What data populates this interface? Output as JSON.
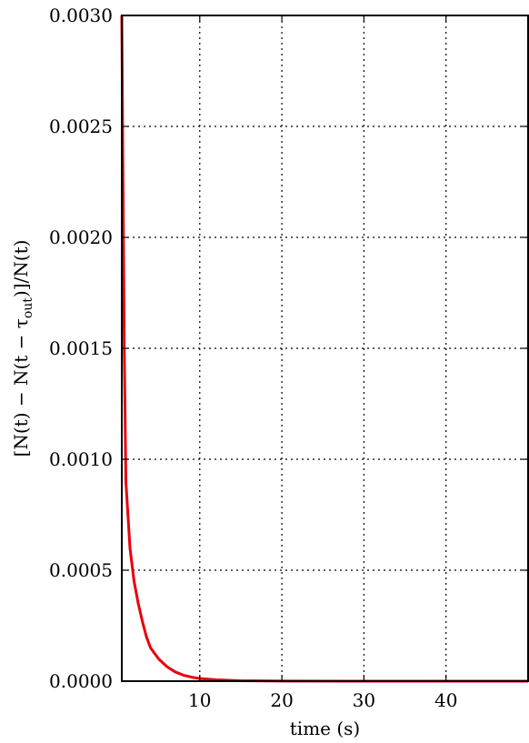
{
  "chart_data": {
    "type": "line",
    "xlabel": "time (s)",
    "ylabel": "[N(t) − N(t − τout)]/N(t)",
    "ylabel_parts": {
      "main": "[N(t) − N(t − τ",
      "subscript": "out",
      "tail": ")]/N(t)"
    },
    "xlim": [
      0.5,
      50
    ],
    "ylim": [
      0.0,
      0.003
    ],
    "x_ticks": [
      10,
      20,
      30,
      40
    ],
    "x_tick_labels": [
      "10",
      "20",
      "30",
      "40"
    ],
    "y_ticks": [
      0.0,
      0.0005,
      0.001,
      0.0015,
      0.002,
      0.0025,
      0.003
    ],
    "y_tick_labels": [
      "0.0000",
      "0.0005",
      "0.0010",
      "0.0015",
      "0.0020",
      "0.0025",
      "0.0030"
    ],
    "grid": true,
    "series": [
      {
        "color": "#e8000b",
        "x": [
          0.5,
          0.8,
          1.0,
          1.5,
          2.0,
          2.5,
          3.0,
          3.5,
          4.0,
          5.0,
          6.0,
          7.0,
          8.0,
          9.0,
          10.0,
          12.0,
          15.0,
          20.0,
          30.0,
          40.0,
          50.0
        ],
        "y": [
          0.003,
          0.0015,
          0.0009,
          0.0006,
          0.00045,
          0.00035,
          0.00027,
          0.0002,
          0.00015,
          0.0001,
          6.5e-05,
          4.2e-05,
          2.7e-05,
          1.8e-05,
          1.2e-05,
          6e-06,
          2e-06,
          5e-07,
          0.0,
          0.0,
          0.0
        ]
      }
    ]
  }
}
